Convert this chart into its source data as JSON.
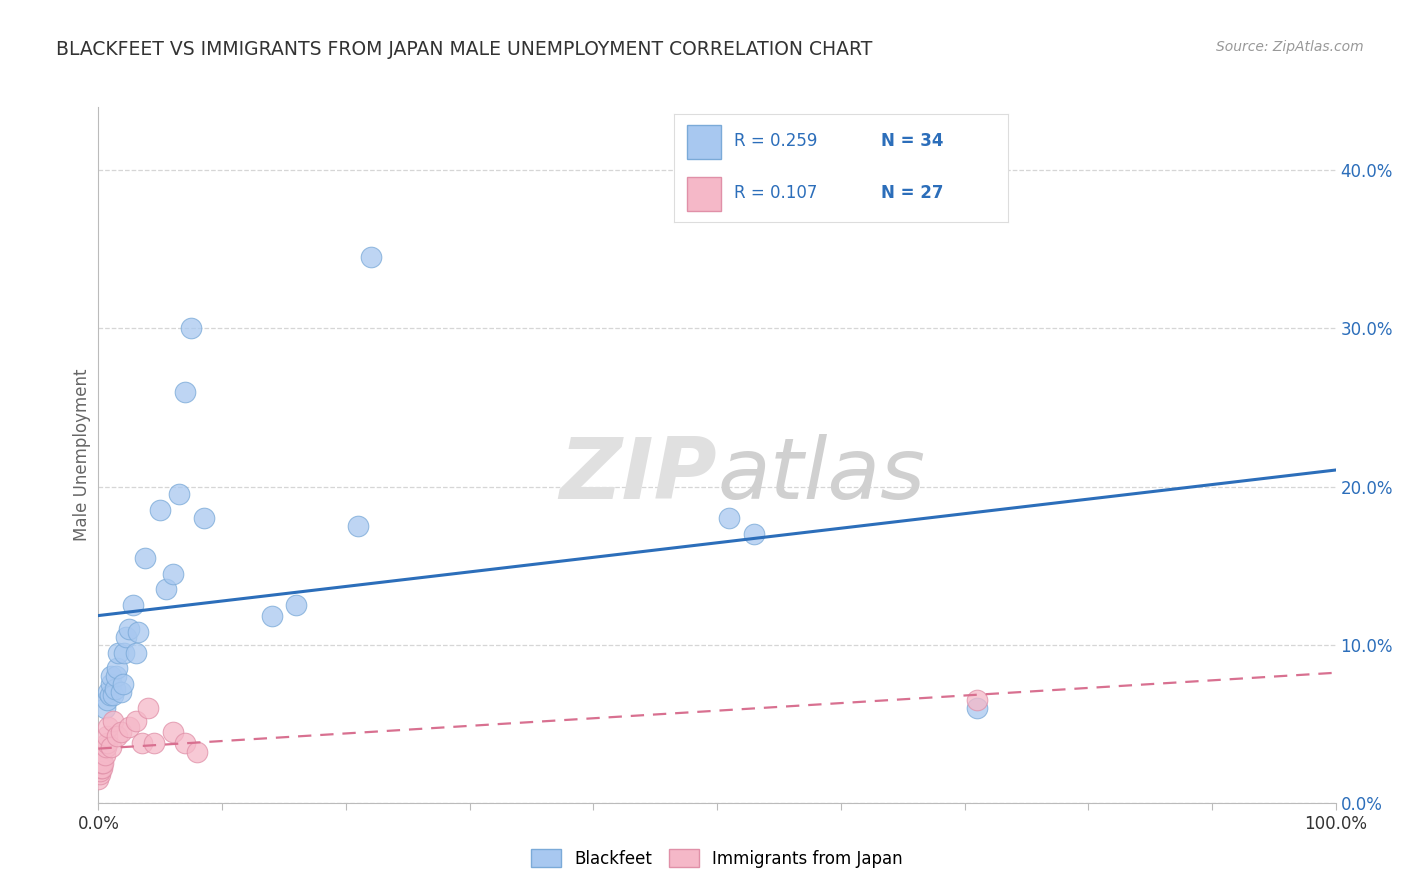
{
  "title": "BLACKFEET VS IMMIGRANTS FROM JAPAN MALE UNEMPLOYMENT CORRELATION CHART",
  "source": "Source: ZipAtlas.com",
  "ylabel": "Male Unemployment",
  "xlim": [
    0,
    1.0
  ],
  "ylim": [
    0.0,
    0.44
  ],
  "xticks": [
    0.0,
    0.1,
    0.2,
    0.3,
    0.4,
    0.5,
    0.6,
    0.7,
    0.8,
    0.9,
    1.0
  ],
  "yticks": [
    0.0,
    0.1,
    0.2,
    0.3,
    0.4
  ],
  "ytick_labels": [
    "0.0%",
    "10.0%",
    "20.0%",
    "30.0%",
    "40.0%"
  ],
  "xtick_labels_left": [
    "0.0%"
  ],
  "xtick_labels_right": [
    "100.0%"
  ],
  "legend_r1": "R = 0.259",
  "legend_n1": "N = 34",
  "legend_r2": "R = 0.107",
  "legend_n2": "N = 27",
  "blue_color": "#A8C8F0",
  "blue_scatter_edge": "#7BAAD8",
  "blue_line_color": "#2C6EBA",
  "pink_color": "#F5B8C8",
  "pink_scatter_edge": "#E090A8",
  "pink_line_color": "#D87090",
  "legend_text_blue": "#2C6EBA",
  "legend_text_N": "#2C6EBA",
  "grid_color": "#CCCCCC",
  "title_color": "#333333",
  "ylabel_color": "#666666",
  "tick_color_y": "#2C6EBA",
  "tick_color_x": "#333333",
  "blackfeet_x": [
    0.005,
    0.007,
    0.008,
    0.009,
    0.01,
    0.01,
    0.012,
    0.013,
    0.014,
    0.015,
    0.016,
    0.018,
    0.02,
    0.021,
    0.022,
    0.025,
    0.028,
    0.03,
    0.032,
    0.038,
    0.05,
    0.055,
    0.06,
    0.065,
    0.07,
    0.075,
    0.085,
    0.14,
    0.16,
    0.21,
    0.22,
    0.51,
    0.53,
    0.71
  ],
  "blackfeet_y": [
    0.06,
    0.065,
    0.07,
    0.068,
    0.075,
    0.08,
    0.068,
    0.072,
    0.08,
    0.085,
    0.095,
    0.07,
    0.075,
    0.095,
    0.105,
    0.11,
    0.125,
    0.095,
    0.108,
    0.155,
    0.185,
    0.135,
    0.145,
    0.195,
    0.26,
    0.3,
    0.18,
    0.118,
    0.125,
    0.175,
    0.345,
    0.18,
    0.17,
    0.06
  ],
  "japan_x": [
    0.0,
    0.001,
    0.001,
    0.002,
    0.002,
    0.002,
    0.003,
    0.003,
    0.004,
    0.005,
    0.006,
    0.007,
    0.007,
    0.008,
    0.01,
    0.012,
    0.015,
    0.018,
    0.025,
    0.03,
    0.035,
    0.04,
    0.045,
    0.06,
    0.07,
    0.08,
    0.71
  ],
  "japan_y": [
    0.015,
    0.018,
    0.02,
    0.022,
    0.025,
    0.028,
    0.022,
    0.025,
    0.025,
    0.03,
    0.035,
    0.038,
    0.042,
    0.048,
    0.035,
    0.052,
    0.042,
    0.045,
    0.048,
    0.052,
    0.038,
    0.06,
    0.038,
    0.045,
    0.038,
    0.032,
    0.065
  ]
}
